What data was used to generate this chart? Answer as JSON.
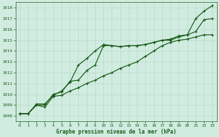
{
  "xlabel": "Graphe pression niveau de la mer (hPa)",
  "xlim": [
    -0.5,
    23.5
  ],
  "ylim": [
    1007.5,
    1018.5
  ],
  "yticks": [
    1008,
    1009,
    1010,
    1011,
    1012,
    1013,
    1014,
    1015,
    1016,
    1017,
    1018
  ],
  "xticks": [
    0,
    1,
    2,
    3,
    4,
    5,
    6,
    7,
    8,
    9,
    10,
    11,
    12,
    13,
    14,
    15,
    16,
    17,
    18,
    19,
    20,
    21,
    22,
    23
  ],
  "bg_color": "#d0ece0",
  "line_color": "#1a5c1a",
  "grid_color": "#b8d8c8",
  "line1_y": [
    1008.2,
    1008.2,
    1009.1,
    1009.1,
    1009.9,
    1010.3,
    1011.1,
    1012.7,
    1013.3,
    1014.0,
    1014.6,
    1014.5,
    1014.4,
    1014.5,
    1014.5,
    1014.6,
    1014.8,
    1015.0,
    1015.0,
    1015.3,
    1015.5,
    1017.0,
    1017.7,
    1018.2
  ],
  "line2_y": [
    1008.2,
    1008.2,
    1009.0,
    1009.0,
    1010.0,
    1010.2,
    1011.2,
    1011.3,
    1012.2,
    1012.7,
    1014.5,
    1014.5,
    1014.4,
    1014.5,
    1014.5,
    1014.6,
    1014.8,
    1015.0,
    1015.1,
    1015.4,
    1015.5,
    1015.8,
    1016.9,
    1017.0
  ],
  "line3_y": [
    1008.2,
    1008.2,
    1009.0,
    1008.8,
    1009.8,
    1009.9,
    1010.3,
    1010.6,
    1011.0,
    1011.3,
    1011.7,
    1012.0,
    1012.4,
    1012.7,
    1013.0,
    1013.5,
    1014.0,
    1014.5,
    1014.8,
    1015.0,
    1015.1,
    1015.3,
    1015.5,
    1015.5
  ]
}
